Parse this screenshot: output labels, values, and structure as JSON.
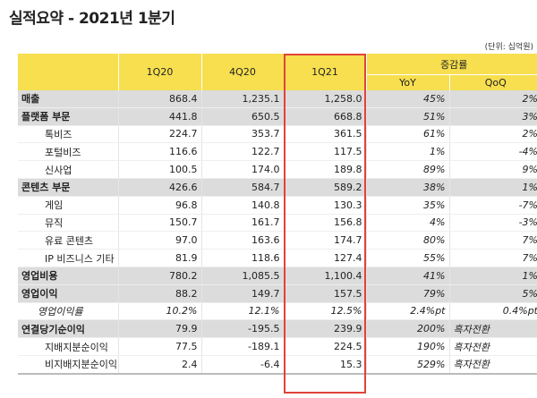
{
  "title": "실적요약 - 2021년 1분기",
  "unit": "(단위: 십억원)",
  "headers": {
    "c1": "1Q20",
    "c2": "4Q20",
    "c3": "1Q21",
    "change": "증감률",
    "yoy": "YoY",
    "qoq": "QoQ"
  },
  "highlight_color": "#e0433a",
  "header_color": "#f7df4f",
  "rows": [
    {
      "label": "매출",
      "v": [
        "868.4",
        "1,235.1",
        "1,258.0",
        "45%",
        "2%"
      ]
    },
    {
      "label": "플랫폼 부문",
      "v": [
        "441.8",
        "650.5",
        "668.8",
        "51%",
        "3%"
      ]
    },
    {
      "label": "톡비즈",
      "v": [
        "224.7",
        "353.7",
        "361.5",
        "61%",
        "2%"
      ]
    },
    {
      "label": "포털비즈",
      "v": [
        "116.6",
        "122.7",
        "117.5",
        "1%",
        "-4%"
      ]
    },
    {
      "label": "신사업",
      "v": [
        "100.5",
        "174.0",
        "189.8",
        "89%",
        "9%"
      ]
    },
    {
      "label": "콘텐츠 부문",
      "v": [
        "426.6",
        "584.7",
        "589.2",
        "38%",
        "1%"
      ]
    },
    {
      "label": "게임",
      "v": [
        "96.8",
        "140.8",
        "130.3",
        "35%",
        "-7%"
      ]
    },
    {
      "label": "뮤직",
      "v": [
        "150.7",
        "161.7",
        "156.8",
        "4%",
        "-3%"
      ]
    },
    {
      "label": "유료 콘텐츠",
      "v": [
        "97.0",
        "163.6",
        "174.7",
        "80%",
        "7%"
      ]
    },
    {
      "label": "IP 비즈니스 기타",
      "v": [
        "81.9",
        "118.6",
        "127.4",
        "55%",
        "7%"
      ]
    },
    {
      "label": "영업비용",
      "v": [
        "780.2",
        "1,085.5",
        "1,100.4",
        "41%",
        "1%"
      ]
    },
    {
      "label": "영업이익",
      "v": [
        "88.2",
        "149.7",
        "157.5",
        "79%",
        "5%"
      ]
    },
    {
      "label": "영업이익률",
      "v": [
        "10.2%",
        "12.1%",
        "12.5%",
        "2.4%pt",
        "0.4%pt"
      ]
    },
    {
      "label": "연결당기순이익",
      "v": [
        "79.9",
        "-195.5",
        "239.9",
        "200%",
        "흑자전환"
      ]
    },
    {
      "label": "지배지분순이익",
      "v": [
        "77.5",
        "-189.1",
        "224.5",
        "190%",
        "흑자전환"
      ]
    },
    {
      "label": "비지배지분순이익",
      "v": [
        "2.4",
        "-6.4",
        "15.3",
        "529%",
        "흑자전환"
      ]
    }
  ]
}
